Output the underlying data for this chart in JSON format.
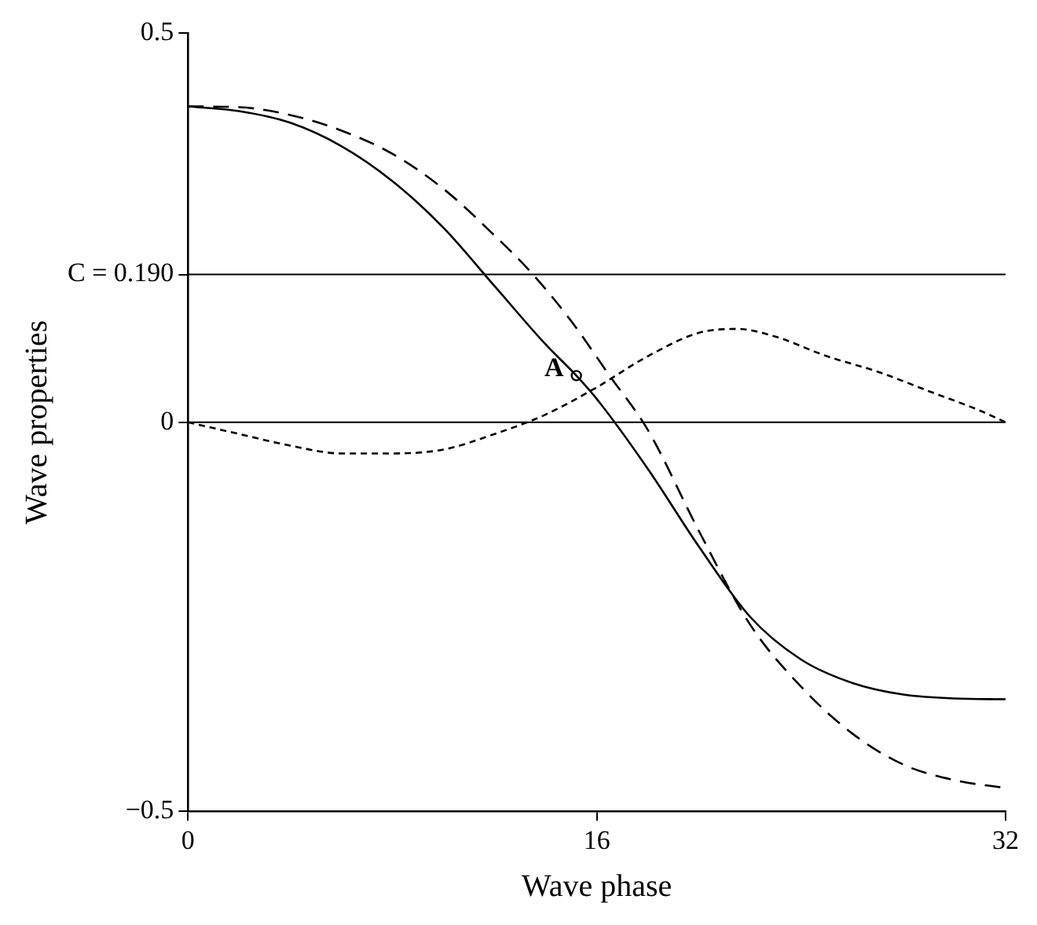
{
  "chart_data": {
    "type": "line",
    "xlabel": "Wave phase",
    "ylabel": "Wave properties",
    "xlim": [
      0,
      32
    ],
    "xticks": [
      0,
      16,
      32
    ],
    "ylim": [
      -0.5,
      0.5
    ],
    "yticks": [
      -0.5,
      0,
      {
        "value": 0.19,
        "label": "C = 0.190"
      },
      0.5
    ],
    "grid": false,
    "legend": false,
    "marker": "none",
    "ref_lines": [
      {
        "axis": "y",
        "value": 0,
        "color": "#000000"
      },
      {
        "axis": "y",
        "value": 0.19,
        "color": "#000000"
      }
    ],
    "annotations": [
      {
        "text": "A",
        "x": 15.2,
        "y": 0.06
      }
    ],
    "series": [
      {
        "color": "#000000",
        "line_style": "solid",
        "x": [
          0,
          2,
          4,
          6,
          8,
          10,
          12,
          14,
          15.2,
          16,
          18,
          20,
          22,
          24,
          26,
          28,
          30,
          32
        ],
        "values": [
          0.406,
          0.4,
          0.385,
          0.355,
          0.31,
          0.25,
          0.175,
          0.1,
          0.06,
          0.03,
          -0.06,
          -0.16,
          -0.25,
          -0.305,
          -0.335,
          -0.35,
          -0.355,
          -0.356
        ]
      },
      {
        "color": "#000000",
        "line_style": "dashed",
        "x": [
          0,
          2,
          4,
          6,
          8,
          10,
          12,
          13.5,
          15,
          16.5,
          18,
          20,
          22,
          24,
          26,
          28,
          30,
          32
        ],
        "values": [
          0.406,
          0.405,
          0.395,
          0.375,
          0.345,
          0.3,
          0.24,
          0.19,
          0.13,
          0.06,
          -0.01,
          -0.14,
          -0.26,
          -0.34,
          -0.4,
          -0.44,
          -0.46,
          -0.47
        ]
      },
      {
        "color": "#000000",
        "line_style": "dotted",
        "x": [
          0,
          2,
          4,
          6,
          8,
          10,
          12,
          14,
          16,
          18,
          20,
          21.5,
          23,
          25,
          27,
          29,
          31,
          32
        ],
        "values": [
          0,
          -0.015,
          -0.03,
          -0.04,
          -0.04,
          -0.035,
          -0.015,
          0.01,
          0.045,
          0.085,
          0.115,
          0.12,
          0.11,
          0.085,
          0.065,
          0.04,
          0.015,
          0
        ]
      },
      {
        "type": "scatter",
        "color": "#000000",
        "marker": "circle",
        "x": [
          15.2
        ],
        "values": [
          0.06
        ]
      }
    ]
  }
}
